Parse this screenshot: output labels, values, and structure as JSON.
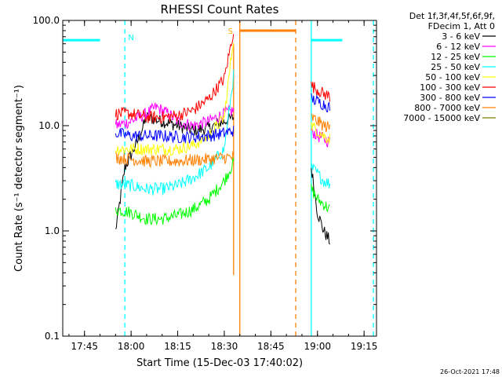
{
  "chart_data": {
    "type": "line",
    "title": "RHESSI Count Rates",
    "xlabel": "Start Time (15-Dec-03 17:40:02)",
    "ylabel": "Count Rate (s⁻¹ detector segment⁻¹)",
    "yscale": "log",
    "ylim": [
      0.1,
      100.0
    ],
    "xlim": [
      "17:38",
      "19:19"
    ],
    "x_ticks": [
      "17:45",
      "18:00",
      "18:15",
      "18:30",
      "18:45",
      "19:00",
      "19:15"
    ],
    "y_ticks": [
      "0.1",
      "1.0",
      "10.0",
      "100.0"
    ],
    "grid": false,
    "legend_position": "right",
    "legend_header": [
      "Det 1f,3f,4f,5f,6f,9f,",
      "FDecim 1, Att 0"
    ],
    "series": [
      {
        "name": "3 - 6 keV",
        "color": "#000000",
        "segments": [
          {
            "t": [
              "17:55",
              "17:58",
              "18:02",
              "18:05",
              "18:10",
              "18:15",
              "18:20",
              "18:25",
              "18:30",
              "18:33"
            ],
            "v": [
              1.0,
              4.0,
              7.0,
              12.0,
              11.0,
              10.0,
              9.0,
              9.5,
              11.0,
              12.0
            ]
          },
          {
            "t": [
              "18:58",
              "19:00",
              "19:02",
              "19:04"
            ],
            "v": [
              4.0,
              1.5,
              1.0,
              0.8
            ]
          }
        ]
      },
      {
        "name": "6 - 12 keV",
        "color": "#ff00ff",
        "segments": [
          {
            "t": [
              "17:55",
              "18:00",
              "18:05",
              "18:08",
              "18:12",
              "18:15",
              "18:20",
              "18:25",
              "18:30",
              "18:33"
            ],
            "v": [
              10.0,
              11.0,
              13.0,
              15.0,
              13.0,
              11.0,
              10.0,
              11.0,
              13.0,
              14.0
            ]
          },
          {
            "t": [
              "18:58",
              "19:00",
              "19:02",
              "19:04"
            ],
            "v": [
              9.0,
              8.0,
              7.5,
              7.0
            ]
          }
        ]
      },
      {
        "name": "12 - 25 keV",
        "color": "#00ff00",
        "segments": [
          {
            "t": [
              "17:55",
              "18:00",
              "18:05",
              "18:10",
              "18:15",
              "18:20",
              "18:25",
              "18:30",
              "18:33"
            ],
            "v": [
              1.6,
              1.5,
              1.3,
              1.3,
              1.4,
              1.6,
              2.0,
              3.0,
              4.5
            ]
          },
          {
            "t": [
              "18:58",
              "19:00",
              "19:02",
              "19:04"
            ],
            "v": [
              2.5,
              2.0,
              1.8,
              1.6
            ]
          }
        ]
      },
      {
        "name": "25 - 50 keV",
        "color": "#00ffff",
        "segments": [
          {
            "t": [
              "17:55",
              "18:00",
              "18:05",
              "18:10",
              "18:15",
              "18:20",
              "18:25",
              "18:30",
              "18:33"
            ],
            "v": [
              2.8,
              2.7,
              2.5,
              2.5,
              2.7,
              3.2,
              4.0,
              6.0,
              30.0
            ]
          },
          {
            "t": [
              "18:58",
              "19:00",
              "19:02",
              "19:04"
            ],
            "v": [
              4.0,
              3.5,
              3.0,
              2.8
            ]
          }
        ]
      },
      {
        "name": "50 - 100 keV",
        "color": "#ffff00",
        "segments": [
          {
            "t": [
              "17:55",
              "18:00",
              "18:05",
              "18:10",
              "18:15",
              "18:20",
              "18:25",
              "18:30",
              "18:33"
            ],
            "v": [
              6.0,
              6.0,
              6.0,
              6.0,
              6.0,
              6.5,
              8.0,
              12.0,
              70.0
            ]
          },
          {
            "t": [
              "18:58",
              "19:00",
              "19:02",
              "19:04"
            ],
            "v": [
              10.0,
              9.0,
              8.0,
              7.5
            ]
          }
        ]
      },
      {
        "name": "100 - 300 keV",
        "color": "#ff0000",
        "segments": [
          {
            "t": [
              "17:55",
              "18:00",
              "18:05",
              "18:10",
              "18:15",
              "18:20",
              "18:25",
              "18:30",
              "18:33"
            ],
            "v": [
              13.0,
              13.0,
              12.0,
              12.0,
              12.5,
              14.0,
              18.0,
              28.0,
              80.0
            ]
          },
          {
            "t": [
              "18:58",
              "19:00",
              "19:02",
              "19:04"
            ],
            "v": [
              24.0,
              22.0,
              20.0,
              19.0
            ]
          }
        ]
      },
      {
        "name": "300 - 800 keV",
        "color": "#0000ff",
        "segments": [
          {
            "t": [
              "17:55",
              "18:00",
              "18:05",
              "18:10",
              "18:15",
              "18:20",
              "18:25",
              "18:30",
              "18:33"
            ],
            "v": [
              8.5,
              8.0,
              8.0,
              8.0,
              7.8,
              7.8,
              8.0,
              8.5,
              9.0
            ]
          },
          {
            "t": [
              "18:58",
              "19:00",
              "19:02",
              "19:04"
            ],
            "v": [
              18.0,
              17.0,
              16.0,
              15.0
            ]
          }
        ]
      },
      {
        "name": "800 - 7000 keV",
        "color": "#ff8000",
        "segments": [
          {
            "t": [
              "17:55",
              "18:00",
              "18:05",
              "18:10",
              "18:15",
              "18:20",
              "18:25",
              "18:30",
              "18:33"
            ],
            "v": [
              5.0,
              4.8,
              4.6,
              4.6,
              4.6,
              4.7,
              4.8,
              5.0,
              5.0
            ]
          },
          {
            "t": [
              "18:58",
              "19:00",
              "19:02",
              "19:04"
            ],
            "v": [
              12.0,
              11.0,
              10.0,
              9.5
            ]
          }
        ]
      },
      {
        "name": "7000 - 15000 keV",
        "color": "#808000",
        "segments": []
      }
    ],
    "annotations": [
      {
        "type": "hline",
        "color": "#00ffff",
        "t": [
          "17:38",
          "17:50"
        ],
        "v": 65.0
      },
      {
        "type": "vline",
        "color": "#00ffff",
        "style": "dashed",
        "t": "17:58"
      },
      {
        "type": "label",
        "text": "N",
        "color": "#00ffff",
        "t": "18:00",
        "v": 70.0
      },
      {
        "type": "label",
        "text": "S",
        "color": "#ffaa00",
        "t": "18:32",
        "v": 80.0
      },
      {
        "type": "vline",
        "color": "#ff8000",
        "style": "solid",
        "t": "18:35"
      },
      {
        "type": "vline",
        "color": "#ff8000",
        "style": "solid",
        "t": "18:33",
        "v_range": [
          0.38,
          60.0
        ]
      },
      {
        "type": "hline",
        "color": "#ff8000",
        "t": [
          "18:35",
          "18:53"
        ],
        "v": 80.0
      },
      {
        "type": "vline",
        "color": "#ff8000",
        "style": "dashed",
        "t": "18:53"
      },
      {
        "type": "vline",
        "color": "#00ffff",
        "style": "solid",
        "t": "18:58"
      },
      {
        "type": "hline",
        "color": "#00ffff",
        "t": [
          "18:58",
          "19:08"
        ],
        "v": 65.0
      },
      {
        "type": "vline",
        "color": "#00ffff",
        "style": "dashed",
        "t": "19:18"
      }
    ]
  },
  "timestamp": "26-Oct-2021 17:48"
}
